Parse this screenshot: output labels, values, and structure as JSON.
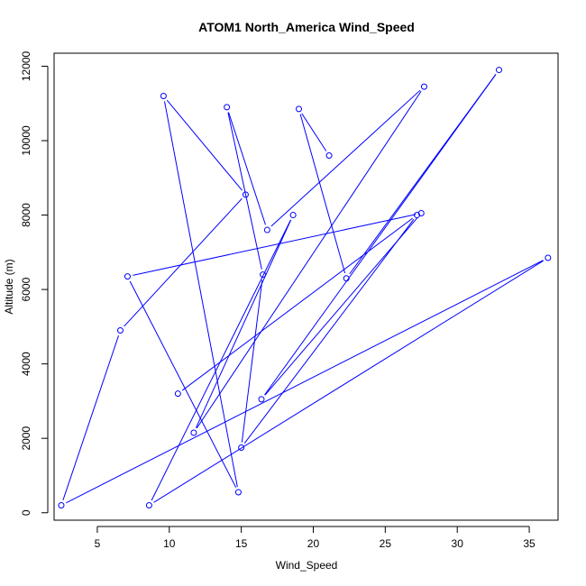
{
  "chart_data": {
    "type": "line",
    "title": "ATOM1 North_America Wind_Speed",
    "xlabel": "Wind_Speed",
    "ylabel": "Altitude (m)",
    "xlim": [
      2,
      37
    ],
    "ylim": [
      -200,
      12350
    ],
    "xticks": [
      5,
      10,
      15,
      20,
      25,
      30,
      35
    ],
    "yticks": [
      0,
      2000,
      4000,
      6000,
      8000,
      10000,
      12000
    ],
    "grid": false,
    "series_color": "#0000ff",
    "points": [
      {
        "x": 21.1,
        "y": 9600
      },
      {
        "x": 19.0,
        "y": 10850
      },
      {
        "x": 22.3,
        "y": 6300
      },
      {
        "x": 32.9,
        "y": 11900
      },
      {
        "x": 16.4,
        "y": 3050
      },
      {
        "x": 27.5,
        "y": 8050
      },
      {
        "x": 7.1,
        "y": 6350
      },
      {
        "x": 14.8,
        "y": 550
      },
      {
        "x": 9.6,
        "y": 11200
      },
      {
        "x": 15.3,
        "y": 8550
      },
      {
        "x": 6.6,
        "y": 4900
      },
      {
        "x": 2.5,
        "y": 200
      },
      {
        "x": 36.3,
        "y": 6850
      },
      {
        "x": 8.6,
        "y": 200
      },
      {
        "x": 18.6,
        "y": 8000
      },
      {
        "x": 11.7,
        "y": 2150
      },
      {
        "x": 27.7,
        "y": 11450
      },
      {
        "x": 16.8,
        "y": 7600
      },
      {
        "x": 14.0,
        "y": 10900
      },
      {
        "x": 16.5,
        "y": 6400
      },
      {
        "x": 15.0,
        "y": 1750
      },
      {
        "x": 27.2,
        "y": 8000
      },
      {
        "x": 10.6,
        "y": 3200
      }
    ]
  }
}
